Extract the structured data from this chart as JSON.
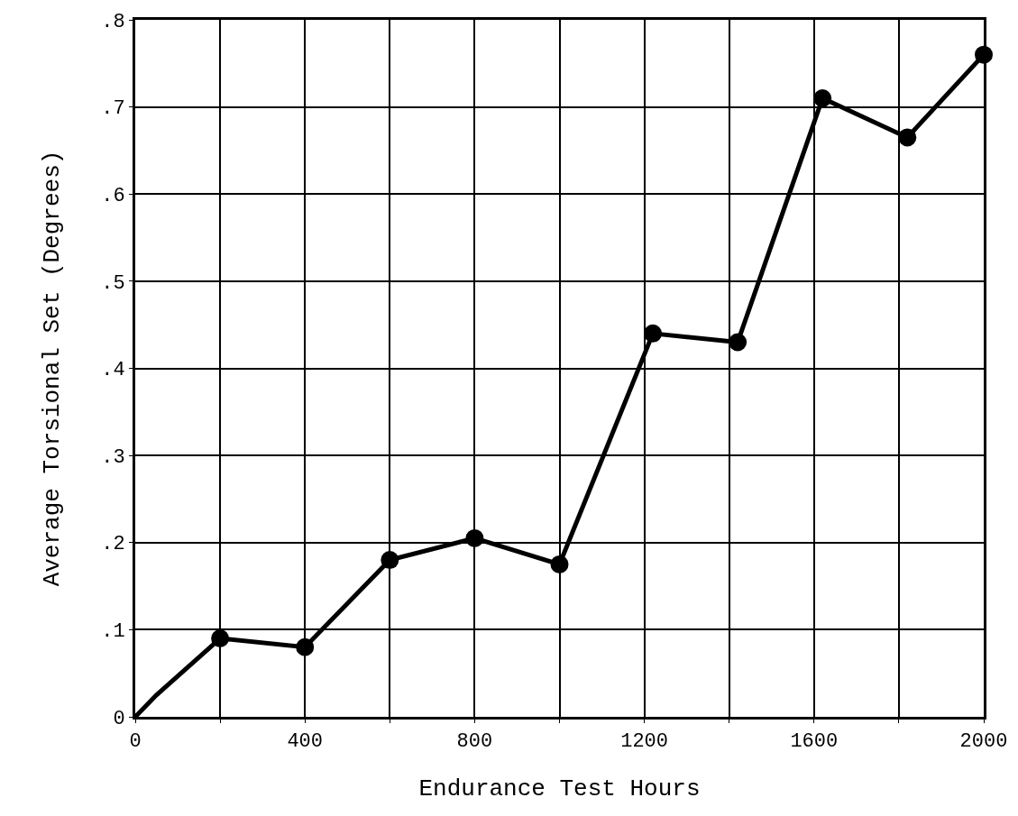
{
  "chart_data": {
    "type": "line",
    "xlabel": "Endurance Test Hours",
    "ylabel": "Average Torsional Set (Degrees)",
    "series": [
      {
        "color": "#000000",
        "marker": "none",
        "x": [
          0,
          50,
          200
        ],
        "values": [
          0,
          0.025,
          0.09
        ]
      },
      {
        "color": "#000000",
        "marker": "circle",
        "x": [
          200,
          400,
          600,
          800,
          1000,
          1220,
          1420,
          1620,
          1820,
          2000
        ],
        "values": [
          0.09,
          0.08,
          0.18,
          0.205,
          0.175,
          0.44,
          0.43,
          0.71,
          0.665,
          0.76
        ]
      }
    ],
    "xlim": [
      0,
      2000
    ],
    "ylim": [
      0,
      0.8
    ],
    "xticks": [
      0,
      {
        "value": 200,
        "label": null
      },
      400,
      {
        "value": 600,
        "label": null
      },
      800,
      {
        "value": 1000,
        "label": null
      },
      1200,
      {
        "value": 1400,
        "label": null
      },
      1600,
      {
        "value": 1800,
        "label": null
      },
      2000
    ],
    "yticks": [
      0,
      {
        "value": 0.1,
        "label": ".1"
      },
      {
        "value": 0.2,
        "label": ".2"
      },
      {
        "value": 0.3,
        "label": ".3"
      },
      {
        "value": 0.4,
        "label": ".4"
      },
      {
        "value": 0.5,
        "label": ".5"
      },
      {
        "value": 0.6,
        "label": ".6"
      },
      {
        "value": 0.7,
        "label": ".7"
      },
      {
        "value": 0.8,
        "label": ".8"
      }
    ],
    "grid": true,
    "line_style": "solid"
  }
}
